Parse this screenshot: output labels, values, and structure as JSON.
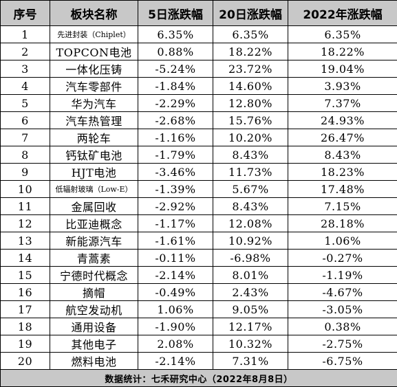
{
  "table": {
    "headers": {
      "index": "序号",
      "name": "板块名称",
      "d5": "5日涨跌幅",
      "d20": "20日涨跌幅",
      "ytd": "2022年涨跌幅"
    },
    "rows": [
      {
        "index": "1",
        "name": "先进封装（Chiplet）",
        "d5": "6.35%",
        "d20": "6.35%",
        "ytd": "6.35%"
      },
      {
        "index": "2",
        "name": "TOPCON电池",
        "d5": "0.88%",
        "d20": "18.22%",
        "ytd": "18.22%"
      },
      {
        "index": "3",
        "name": "一体化压铸",
        "d5": "-5.24%",
        "d20": "23.72%",
        "ytd": "19.04%"
      },
      {
        "index": "4",
        "name": "汽车零部件",
        "d5": "-1.84%",
        "d20": "14.60%",
        "ytd": "3.93%"
      },
      {
        "index": "5",
        "name": "华为汽车",
        "d5": "-2.29%",
        "d20": "12.80%",
        "ytd": "7.37%"
      },
      {
        "index": "6",
        "name": "汽车热管理",
        "d5": "-2.68%",
        "d20": "15.76%",
        "ytd": "24.93%"
      },
      {
        "index": "7",
        "name": "两轮车",
        "d5": "-1.16%",
        "d20": "10.20%",
        "ytd": "26.47%"
      },
      {
        "index": "8",
        "name": "钙钛矿电池",
        "d5": "-1.79%",
        "d20": "8.43%",
        "ytd": "8.43%"
      },
      {
        "index": "9",
        "name": "HJT电池",
        "d5": "-3.46%",
        "d20": "11.73%",
        "ytd": "18.23%"
      },
      {
        "index": "10",
        "name": "低辐射玻璃（Low-E）",
        "d5": "-1.39%",
        "d20": "5.67%",
        "ytd": "17.48%"
      },
      {
        "index": "11",
        "name": "金属回收",
        "d5": "-2.92%",
        "d20": "8.43%",
        "ytd": "7.15%"
      },
      {
        "index": "12",
        "name": "比亚迪概念",
        "d5": "-1.17%",
        "d20": "12.08%",
        "ytd": "28.18%"
      },
      {
        "index": "13",
        "name": "新能源汽车",
        "d5": "-1.61%",
        "d20": "10.92%",
        "ytd": "1.06%"
      },
      {
        "index": "14",
        "name": "青蒿素",
        "d5": "-0.11%",
        "d20": "-6.98%",
        "ytd": "-0.27%"
      },
      {
        "index": "15",
        "name": "宁德时代概念",
        "d5": "-2.14%",
        "d20": "8.01%",
        "ytd": "-1.19%"
      },
      {
        "index": "16",
        "name": "摘帽",
        "d5": "-0.49%",
        "d20": "2.43%",
        "ytd": "-4.67%"
      },
      {
        "index": "17",
        "name": "航空发动机",
        "d5": "1.06%",
        "d20": "9.05%",
        "ytd": "-3.05%"
      },
      {
        "index": "18",
        "name": "通用设备",
        "d5": "-1.90%",
        "d20": "12.17%",
        "ytd": "0.38%"
      },
      {
        "index": "19",
        "name": "其他电子",
        "d5": "2.08%",
        "d20": "10.32%",
        "ytd": "-2.75%"
      },
      {
        "index": "20",
        "name": "燃料电池",
        "d5": "-2.14%",
        "d20": "7.31%",
        "ytd": "-6.75%"
      }
    ],
    "footer": "数据统计：七禾研究中心（2022年8月8日）"
  }
}
